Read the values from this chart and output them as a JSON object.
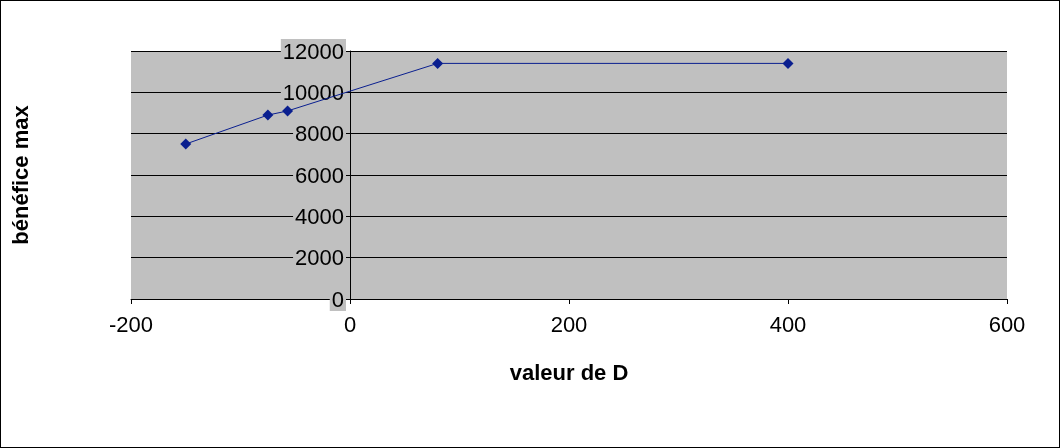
{
  "chart_data": {
    "type": "line",
    "xlabel": "valeur de D",
    "ylabel": "bénéfice max",
    "x": [
      -150,
      -75,
      -57,
      80,
      400
    ],
    "series": [
      {
        "color": "#0a1f8f",
        "values": [
          7500,
          8900,
          9100,
          11400,
          11400
        ]
      }
    ],
    "xlim": [
      -200,
      600
    ],
    "xticks": [
      -200,
      0,
      200,
      400,
      600
    ],
    "ylim": [
      0,
      12000
    ],
    "yticks": [
      0,
      2000,
      4000,
      6000,
      8000,
      10000,
      12000
    ],
    "grid": "y",
    "legend": false,
    "marker": "diamond",
    "line_style": "solid"
  }
}
